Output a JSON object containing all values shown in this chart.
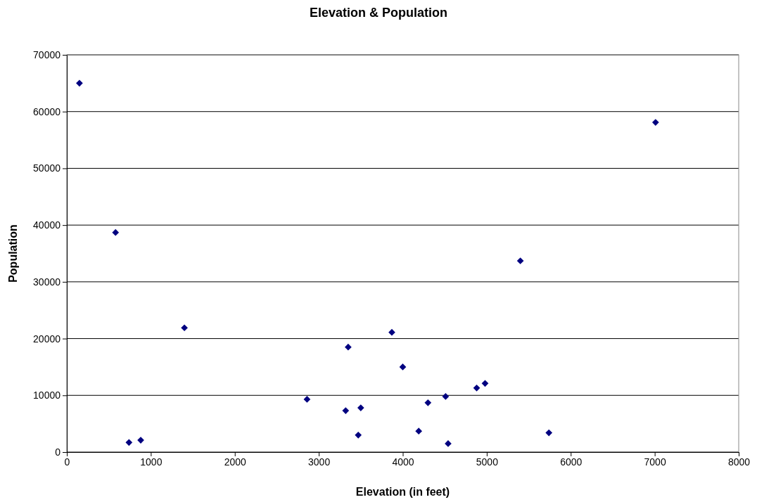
{
  "chart_data": {
    "type": "scatter",
    "title": "Elevation & Population",
    "xlabel": "Elevation (in feet)",
    "ylabel": "Population",
    "x": [
      150,
      580,
      740,
      880,
      1400,
      2860,
      3320,
      3350,
      3470,
      3500,
      3870,
      4000,
      4190,
      4300,
      4510,
      4540,
      4880,
      4980,
      5400,
      5740,
      7010
    ],
    "series": [
      {
        "color": "#000080",
        "values": [
          65000,
          38700,
          1700,
          2100,
          21900,
          9300,
          7300,
          18500,
          3000,
          7800,
          21100,
          15000,
          3700,
          8700,
          9800,
          1500,
          11300,
          12100,
          33700,
          3400,
          58100
        ]
      }
    ],
    "xlim": [
      0,
      8000
    ],
    "xticks": [
      0,
      1000,
      2000,
      3000,
      4000,
      5000,
      6000,
      7000,
      8000
    ],
    "ylim": [
      0,
      70000
    ],
    "yticks": [
      0,
      10000,
      20000,
      30000,
      40000,
      50000,
      60000,
      70000
    ],
    "grid": "y",
    "marker": "diamond"
  }
}
